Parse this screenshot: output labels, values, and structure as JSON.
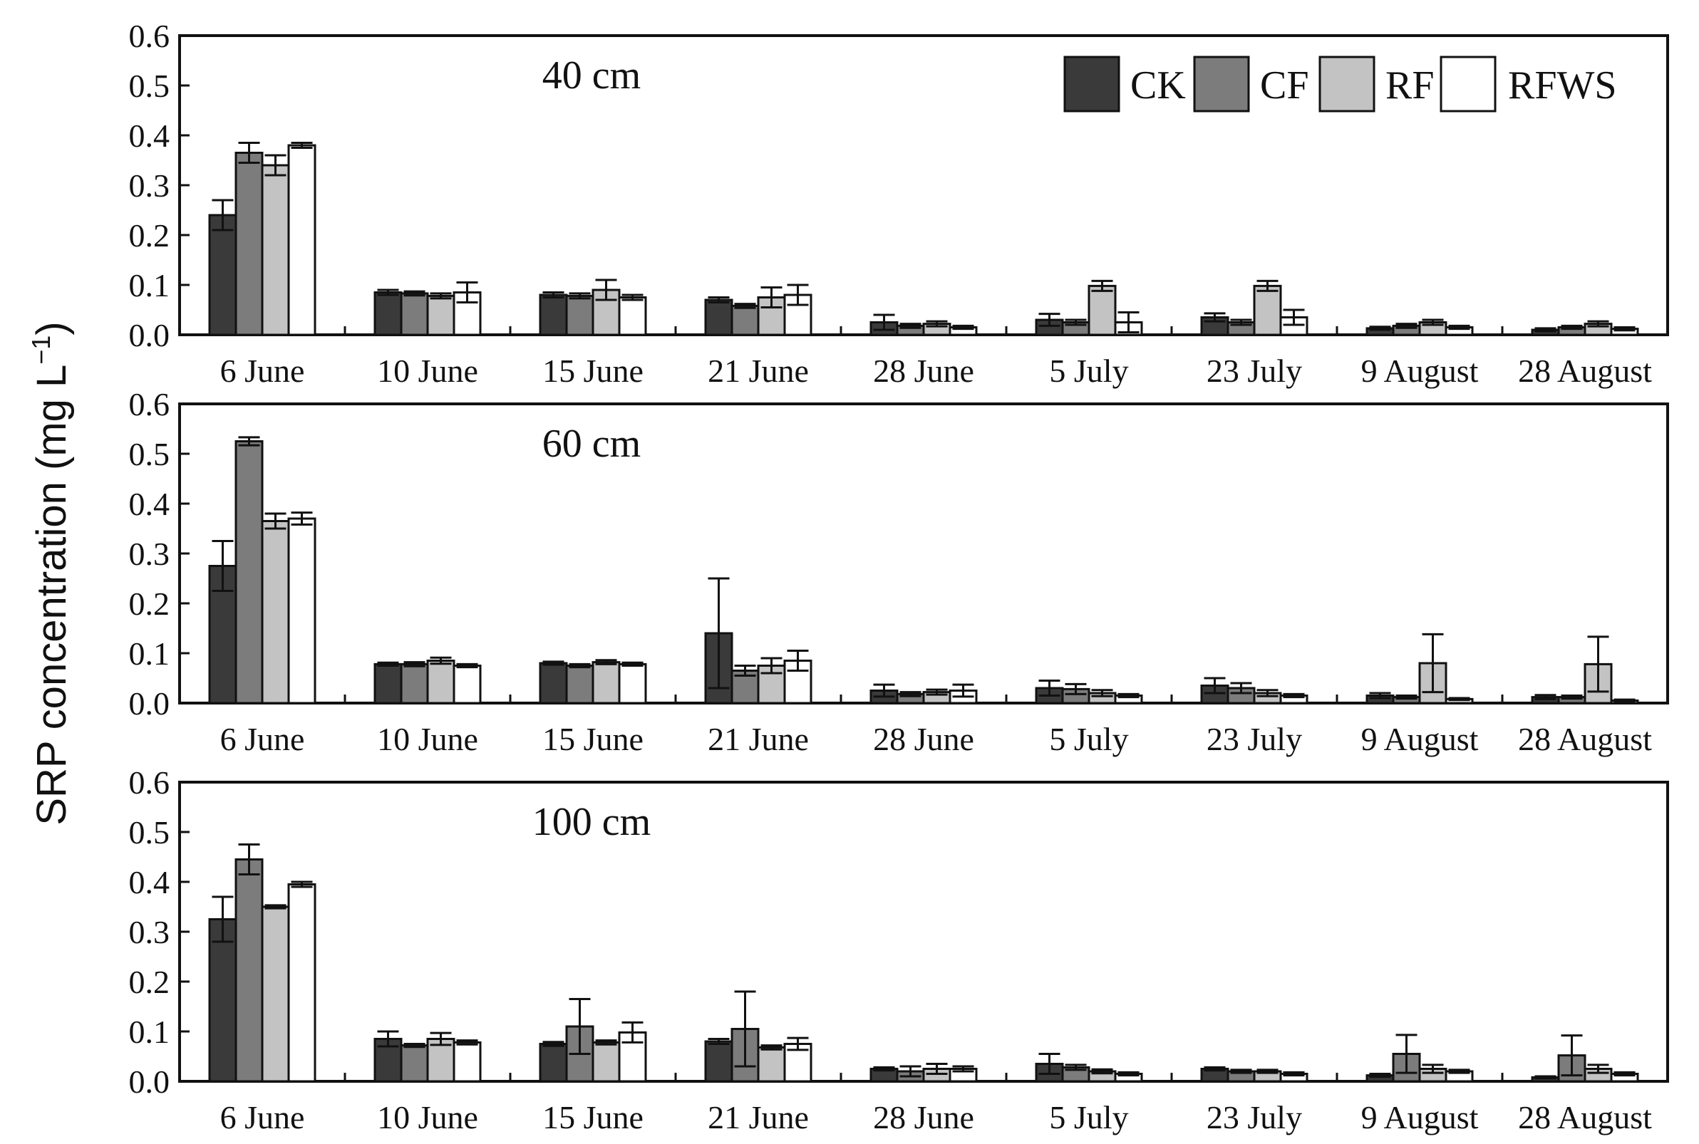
{
  "figure": {
    "ylabel": "SRP concentration (mg L",
    "ylabel_superscript": "−1",
    "ylabel_close": ")"
  },
  "colors": {
    "CK": "#3a3a3a",
    "CF": "#7c7c7c",
    "RF": "#c3c3c3",
    "RFWS": "#ffffff",
    "axis": "#111111"
  },
  "chart_data": [
    {
      "type": "bar",
      "title": "40 cm",
      "xlabel": "",
      "ylabel": "SRP concentration (mg L−1)",
      "ylim": [
        0,
        0.6
      ],
      "yticks": [
        "0.0",
        "0.1",
        "0.2",
        "0.3",
        "0.4",
        "0.5",
        "0.6"
      ],
      "legend": [
        "CK",
        "CF",
        "RF",
        "RFWS"
      ],
      "legend_position": "top-right",
      "categories": [
        "6 June",
        "10 June",
        "15 June",
        "21 June",
        "28 June",
        "5 July",
        "23 July",
        "9 August",
        "28 August"
      ],
      "series": [
        {
          "name": "CK",
          "values": [
            0.24,
            0.085,
            0.08,
            0.07,
            0.025,
            0.03,
            0.035,
            0.013,
            0.01
          ],
          "errors": [
            0.03,
            0.005,
            0.005,
            0.005,
            0.015,
            0.012,
            0.008,
            0.003,
            0.003
          ]
        },
        {
          "name": "CF",
          "values": [
            0.365,
            0.083,
            0.078,
            0.058,
            0.018,
            0.025,
            0.025,
            0.018,
            0.015
          ],
          "errors": [
            0.02,
            0.004,
            0.005,
            0.004,
            0.004,
            0.005,
            0.005,
            0.004,
            0.003
          ]
        },
        {
          "name": "RF",
          "values": [
            0.34,
            0.078,
            0.09,
            0.075,
            0.022,
            0.098,
            0.098,
            0.025,
            0.022
          ],
          "errors": [
            0.02,
            0.005,
            0.02,
            0.02,
            0.005,
            0.01,
            0.01,
            0.005,
            0.005
          ]
        },
        {
          "name": "RFWS",
          "values": [
            0.38,
            0.085,
            0.075,
            0.08,
            0.015,
            0.025,
            0.035,
            0.015,
            0.012
          ],
          "errors": [
            0.005,
            0.02,
            0.005,
            0.02,
            0.003,
            0.02,
            0.015,
            0.003,
            0.003
          ]
        }
      ]
    },
    {
      "type": "bar",
      "title": "60 cm",
      "xlabel": "",
      "ylabel": "SRP concentration (mg L−1)",
      "ylim": [
        0,
        0.6
      ],
      "yticks": [
        "0.0",
        "0.1",
        "0.2",
        "0.3",
        "0.4",
        "0.5",
        "0.6"
      ],
      "categories": [
        "6 June",
        "10 June",
        "15 June",
        "21 June",
        "28 June",
        "5 July",
        "23 July",
        "9 August",
        "28 August"
      ],
      "series": [
        {
          "name": "CK",
          "values": [
            0.275,
            0.078,
            0.08,
            0.14,
            0.025,
            0.03,
            0.035,
            0.015,
            0.012
          ],
          "errors": [
            0.05,
            0.003,
            0.003,
            0.11,
            0.012,
            0.015,
            0.015,
            0.005,
            0.004
          ]
        },
        {
          "name": "CF",
          "values": [
            0.525,
            0.078,
            0.075,
            0.065,
            0.018,
            0.028,
            0.03,
            0.012,
            0.012
          ],
          "errors": [
            0.008,
            0.004,
            0.003,
            0.01,
            0.004,
            0.01,
            0.01,
            0.003,
            0.003
          ]
        },
        {
          "name": "RF",
          "values": [
            0.365,
            0.085,
            0.082,
            0.075,
            0.022,
            0.02,
            0.02,
            0.08,
            0.078
          ],
          "errors": [
            0.015,
            0.006,
            0.004,
            0.015,
            0.005,
            0.006,
            0.006,
            0.058,
            0.055
          ]
        },
        {
          "name": "RFWS",
          "values": [
            0.37,
            0.075,
            0.078,
            0.085,
            0.025,
            0.015,
            0.015,
            0.008,
            0.005
          ],
          "errors": [
            0.012,
            0.003,
            0.003,
            0.02,
            0.012,
            0.003,
            0.003,
            0.002,
            0.002
          ]
        }
      ]
    },
    {
      "type": "bar",
      "title": "100 cm",
      "xlabel": "",
      "ylabel": "SRP concentration (mg L−1)",
      "ylim": [
        0,
        0.6
      ],
      "yticks": [
        "0.0",
        "0.1",
        "0.2",
        "0.3",
        "0.4",
        "0.5",
        "0.6"
      ],
      "categories": [
        "6 June",
        "10 June",
        "15 June",
        "21 June",
        "28 June",
        "5 July",
        "23 July",
        "9 August",
        "28 August"
      ],
      "series": [
        {
          "name": "CK",
          "values": [
            0.325,
            0.085,
            0.075,
            0.08,
            0.025,
            0.035,
            0.025,
            0.012,
            0.008
          ],
          "errors": [
            0.045,
            0.015,
            0.004,
            0.005,
            0.003,
            0.02,
            0.003,
            0.003,
            0.002
          ]
        },
        {
          "name": "CF",
          "values": [
            0.445,
            0.072,
            0.11,
            0.105,
            0.02,
            0.028,
            0.02,
            0.055,
            0.052
          ],
          "errors": [
            0.03,
            0.003,
            0.055,
            0.075,
            0.01,
            0.005,
            0.003,
            0.038,
            0.04
          ]
        },
        {
          "name": "RF",
          "values": [
            0.35,
            0.085,
            0.078,
            0.068,
            0.025,
            0.02,
            0.02,
            0.025,
            0.025
          ],
          "errors": [
            0.003,
            0.012,
            0.004,
            0.004,
            0.01,
            0.004,
            0.003,
            0.008,
            0.008
          ]
        },
        {
          "name": "RFWS",
          "values": [
            0.395,
            0.078,
            0.098,
            0.075,
            0.025,
            0.015,
            0.015,
            0.02,
            0.015
          ],
          "errors": [
            0.005,
            0.004,
            0.02,
            0.012,
            0.005,
            0.003,
            0.003,
            0.003,
            0.003
          ]
        }
      ]
    }
  ]
}
